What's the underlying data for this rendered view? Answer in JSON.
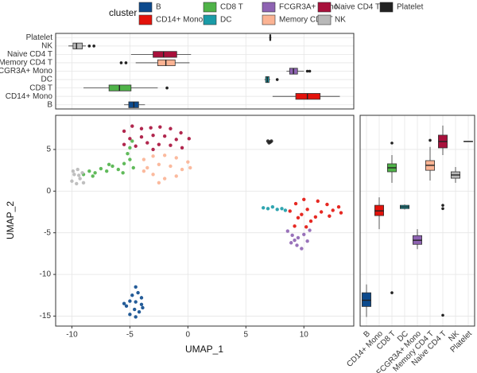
{
  "chart_data": [
    {
      "type": "scatter",
      "x_label": "UMAP_1",
      "y_label": "UMAP_2",
      "legend_title": "cluster",
      "legend": "top",
      "xlim": [
        -11.4,
        14.3
      ],
      "ylim": [
        -16.2,
        9.1
      ],
      "xticks": [
        -10,
        -5,
        0,
        5,
        10
      ],
      "yticks": [
        -15,
        -10,
        -5,
        0,
        5
      ],
      "grid": true,
      "series": [
        {
          "name": "B",
          "color": "#0c4a8d",
          "x": [
            -4.5,
            -4.3,
            -4.8,
            -4.0,
            -5.0,
            -4.5,
            -4.0,
            -5.3,
            -4.6,
            -4.2,
            -5.0,
            -4.5,
            -3.9,
            -5.5
          ],
          "y": [
            -11.5,
            -12.2,
            -12.5,
            -12.8,
            -13.2,
            -13.3,
            -13.6,
            -13.8,
            -14.2,
            -14.5,
            -14.8,
            -15.1,
            -14.0,
            -13.5
          ]
        },
        {
          "name": "CD14+ Mono",
          "color": "#e3120b",
          "x": [
            8.8,
            9.3,
            9.5,
            10.0,
            10.3,
            10.6,
            11.2,
            11.5,
            12.0,
            12.5,
            13.0,
            9.2,
            10.2,
            11.0,
            12.2,
            13.2,
            9.8
          ],
          "y": [
            -2.4,
            -1.5,
            -3.2,
            -1.0,
            -2.2,
            -3.6,
            -1.2,
            -2.5,
            -1.6,
            -2.3,
            -1.9,
            -4.2,
            -4.3,
            -3.1,
            -3.0,
            -2.6,
            -2.8
          ]
        },
        {
          "name": "CD8 T",
          "color": "#4fb348",
          "x": [
            -9.0,
            -8.5,
            -8.0,
            -7.5,
            -7.0,
            -6.5,
            -6.0,
            -5.5,
            -5.0,
            -5.2,
            -5.0,
            -4.8,
            -5.6,
            -4.7,
            -6.8,
            -8.2
          ],
          "y": [
            2.0,
            2.4,
            2.2,
            2.7,
            2.4,
            3.0,
            2.6,
            3.3,
            3.8,
            4.5,
            5.2,
            6.0,
            2.2,
            2.8,
            3.2,
            1.8
          ]
        },
        {
          "name": "DC",
          "color": "#1a9ba7",
          "x": [
            6.5,
            6.9,
            7.3,
            7.7,
            8.1,
            8.4
          ],
          "y": [
            -2.0,
            -2.1,
            -1.9,
            -2.2,
            -2.1,
            -2.3
          ]
        },
        {
          "name": "FCGR3A+ Mono",
          "color": "#8e63b2",
          "x": [
            8.6,
            9.0,
            9.5,
            10.0,
            10.5,
            8.9,
            9.4,
            9.8,
            10.3,
            9.2
          ],
          "y": [
            -4.8,
            -5.3,
            -5.6,
            -5.2,
            -4.7,
            -6.2,
            -6.5,
            -6.9,
            -6.0,
            -5.9
          ]
        },
        {
          "name": "Memory CD4 T",
          "color": "#fbb393",
          "x": [
            -3.8,
            -3.0,
            -2.0,
            -1.0,
            0.0,
            -3.5,
            -2.5,
            -1.5,
            -0.5,
            0.2,
            -3.0,
            -2.0,
            -1.0,
            -2.5,
            -3.8
          ],
          "y": [
            3.8,
            4.2,
            4.3,
            4.0,
            3.5,
            2.8,
            3.2,
            3.0,
            2.6,
            2.8,
            2.0,
            1.5,
            1.8,
            1.0,
            2.4
          ]
        },
        {
          "name": "Naive CD4 T",
          "color": "#a8103b",
          "x": [
            -5.5,
            -4.8,
            -4.0,
            -3.2,
            -2.4,
            -1.5,
            -0.6,
            0.1,
            -5.0,
            -4.0,
            -3.0,
            -2.0,
            -1.0,
            -4.5,
            -3.5,
            -2.5,
            -1.5,
            -0.5,
            -5.5,
            -3.0
          ],
          "y": [
            7.2,
            7.8,
            7.5,
            7.6,
            7.7,
            7.5,
            7.0,
            6.3,
            6.3,
            6.5,
            6.7,
            6.6,
            6.2,
            5.4,
            5.8,
            5.6,
            5.5,
            5.2,
            5.6,
            5.0
          ]
        },
        {
          "name": "NK",
          "color": "#b8b8b8",
          "x": [
            -10.0,
            -9.8,
            -9.5,
            -9.3,
            -9.1,
            -9.0,
            -9.6,
            -9.9,
            -9.4
          ],
          "y": [
            1.2,
            2.0,
            2.6,
            1.5,
            2.2,
            1.0,
            0.9,
            2.4,
            1.9
          ]
        },
        {
          "name": "Platelet",
          "color": "#222222",
          "x": [
            6.9,
            7.1,
            7.2,
            7.0
          ],
          "y": [
            6.0,
            5.9,
            6.0,
            5.8
          ]
        }
      ]
    },
    {
      "type": "box",
      "orientation": "horizontal",
      "xlim": [
        -11.4,
        14.3
      ],
      "grid": true,
      "categories": [
        "B",
        "CD14+ Mono",
        "CD8 T",
        "DC",
        "FCGR3A+ Mono",
        "Memory CD4 T",
        "Naive CD4 T",
        "NK",
        "Platelet"
      ],
      "boxes": [
        {
          "min": -5.5,
          "q1": -5.1,
          "median": -4.66,
          "q3": -4.25,
          "max": -3.7,
          "outliers": []
        },
        {
          "min": 7.3,
          "q1": 9.3,
          "median": 10.3,
          "q3": 11.4,
          "max": 13.1,
          "outliers": []
        },
        {
          "min": -9.0,
          "q1": -6.8,
          "median": -5.9,
          "q3": -4.9,
          "max": -2.6,
          "outliers": [
            -1.8
          ]
        },
        {
          "min": 6.6,
          "q1": 6.7,
          "median": 6.85,
          "q3": 7.0,
          "max": 7.1,
          "outliers": [
            7.7
          ]
        },
        {
          "min": 8.5,
          "q1": 8.77,
          "median": 9.1,
          "q3": 9.45,
          "max": 10.0,
          "outliers": [
            10.3,
            10.5
          ]
        },
        {
          "min": -4.5,
          "q1": -2.6,
          "median": -1.9,
          "q3": -1.1,
          "max": 0.14,
          "outliers": [
            -5.75,
            -5.34
          ]
        },
        {
          "min": -4.9,
          "q1": -3.0,
          "median": -2.1,
          "q3": -0.96,
          "max": 0.27,
          "outliers": []
        },
        {
          "min": -10.3,
          "q1": -9.9,
          "median": -9.6,
          "q3": -9.1,
          "max": -8.8,
          "outliers": [
            -8.5,
            -8.1
          ]
        },
        {
          "min": 7.0,
          "q1": 7.05,
          "median": 7.1,
          "q3": 7.15,
          "max": 7.2,
          "outliers": []
        }
      ]
    },
    {
      "type": "box",
      "orientation": "vertical",
      "ylim": [
        -16.2,
        9.1
      ],
      "grid": true,
      "categories": [
        "B",
        "CD14+ Mono",
        "CD8 T",
        "DC",
        "FCGR3A+ Mono",
        "Memory CD4 T",
        "Naive CD4 T",
        "NK",
        "Platelet"
      ],
      "boxes": [
        {
          "min": -15.1,
          "q1": -13.85,
          "median": -13.1,
          "q3": -12.2,
          "max": -11.2,
          "outliers": []
        },
        {
          "min": -4.57,
          "q1": -2.94,
          "median": -2.37,
          "q3": -1.7,
          "max": -0.74,
          "outliers": []
        },
        {
          "min": 1.0,
          "q1": 2.32,
          "median": 2.8,
          "q3": 3.28,
          "max": 4.33,
          "outliers": [
            5.77,
            -12.2
          ]
        },
        {
          "min": -2.2,
          "q1": -2.1,
          "median": -1.9,
          "q3": -1.7,
          "max": -1.6,
          "outliers": []
        },
        {
          "min": -6.96,
          "q1": -6.39,
          "median": -5.9,
          "q3": -5.34,
          "max": -4.57,
          "outliers": []
        },
        {
          "min": 1.27,
          "q1": 2.5,
          "median": 3.1,
          "q3": 3.66,
          "max": 5.3,
          "outliers": [
            6.1
          ]
        },
        {
          "min": 4.33,
          "q1": 5.19,
          "median": 5.96,
          "q3": 6.72,
          "max": 7.87,
          "outliers": [
            -1.7,
            -2.1,
            -14.9
          ]
        },
        {
          "min": 1.0,
          "q1": 1.55,
          "median": 1.94,
          "q3": 2.32,
          "max": 2.9,
          "outliers": []
        },
        {
          "min": 5.9,
          "q1": 5.94,
          "median": 5.96,
          "q3": 5.98,
          "max": 6.0,
          "outliers": []
        }
      ]
    }
  ]
}
